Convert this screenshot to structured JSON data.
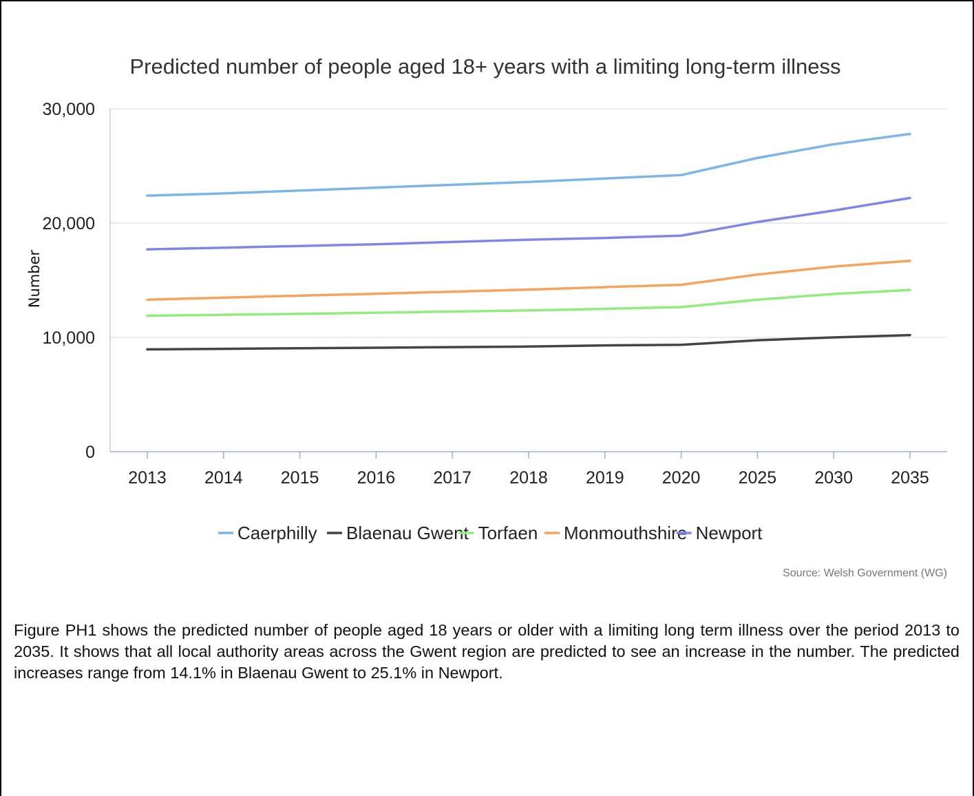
{
  "chart_data": {
    "type": "line",
    "title": "Predicted number of people aged 18+ years with a limiting long-term illness",
    "xlabel": "",
    "ylabel": "Number",
    "categories": [
      "2013",
      "2014",
      "2015",
      "2016",
      "2017",
      "2018",
      "2019",
      "2020",
      "2025",
      "2030",
      "2035"
    ],
    "ylim": [
      0,
      30000
    ],
    "yticks": [
      0,
      10000,
      20000,
      30000
    ],
    "ytick_labels": [
      "0",
      "10,000",
      "20,000",
      "30,000"
    ],
    "grid": true,
    "legend_position": "bottom",
    "series": [
      {
        "name": "Caerphilly",
        "color": "#7cb5ec",
        "values": [
          22400,
          22600,
          22850,
          23100,
          23350,
          23600,
          23900,
          24200,
          25700,
          26900,
          27800
        ]
      },
      {
        "name": "Blaenau Gwent",
        "color": "#434348",
        "values": [
          8950,
          9000,
          9050,
          9100,
          9150,
          9200,
          9300,
          9350,
          9750,
          10000,
          10200
        ]
      },
      {
        "name": "Torfaen",
        "color": "#90ed7d",
        "values": [
          11900,
          11980,
          12060,
          12160,
          12260,
          12360,
          12500,
          12650,
          13300,
          13800,
          14150
        ]
      },
      {
        "name": "Monmouthshire",
        "color": "#f7a35c",
        "values": [
          13300,
          13480,
          13650,
          13820,
          14000,
          14180,
          14400,
          14600,
          15500,
          16200,
          16700
        ]
      },
      {
        "name": "Newport",
        "color": "#8085e9",
        "values": [
          17700,
          17850,
          18000,
          18150,
          18350,
          18550,
          18700,
          18900,
          20100,
          21100,
          22200
        ]
      }
    ],
    "source": "Source: Welsh Government (WG)"
  },
  "caption": "Figure PH1 shows the predicted number of people aged 18 years or older with a limiting long term illness over the period 2013 to 2035. It shows that all local authority areas across the Gwent region are predicted to see an increase in the number. The predicted increases range from 14.1% in Blaenau Gwent to 25.1% in Newport."
}
